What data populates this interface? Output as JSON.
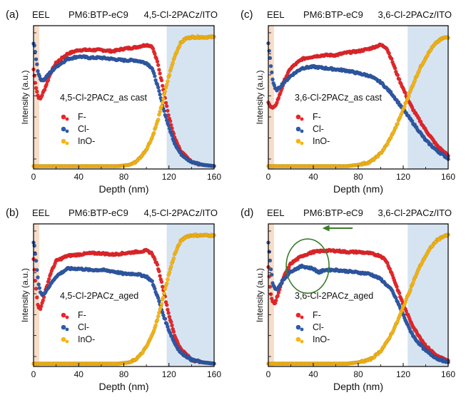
{
  "chart_data": [
    {
      "panel": "(a)",
      "type": "scatter",
      "header": {
        "left": "EEL",
        "middle": "PM6:BTP-eC9",
        "right": "4,5-Cl-2PACz/ITO"
      },
      "annotation": "4,5-Cl-2PACz_as cast",
      "xlabel": "Depth (nm)",
      "ylabel": "Intensity (a.u.)",
      "xlim": [
        0,
        160
      ],
      "ylim": [
        0,
        1
      ],
      "x_ticks": [
        "0",
        "40",
        "80",
        "120",
        "160"
      ],
      "shaded_regions": [
        {
          "name": "EEL",
          "x": [
            0,
            5
          ],
          "color": "#f8dcc8"
        },
        {
          "name": "ITO",
          "x": [
            118,
            160
          ],
          "color": "#d6e4f2"
        }
      ],
      "legend": [
        "F-",
        "Cl-",
        "InO-"
      ],
      "series": [
        {
          "name": "F-",
          "color": "#e8262a",
          "x": [
            0,
            2,
            4,
            6,
            10,
            15,
            20,
            30,
            40,
            50,
            60,
            70,
            80,
            90,
            100,
            105,
            110,
            115,
            120,
            125,
            130,
            140,
            150,
            160
          ],
          "y": [
            0.75,
            0.62,
            0.54,
            0.52,
            0.6,
            0.72,
            0.8,
            0.87,
            0.9,
            0.9,
            0.9,
            0.89,
            0.91,
            0.92,
            0.94,
            0.93,
            0.8,
            0.6,
            0.38,
            0.22,
            0.12,
            0.03,
            0.01,
            0.0
          ]
        },
        {
          "name": "Cl-",
          "color": "#2f5aa8",
          "x": [
            0,
            1,
            2,
            4,
            6,
            8,
            12,
            20,
            30,
            40,
            50,
            60,
            70,
            80,
            90,
            100,
            105,
            110,
            115,
            120,
            125,
            130,
            140,
            150,
            160
          ],
          "y": [
            0.95,
            0.92,
            0.85,
            0.73,
            0.68,
            0.66,
            0.7,
            0.77,
            0.83,
            0.85,
            0.84,
            0.84,
            0.83,
            0.82,
            0.82,
            0.8,
            0.76,
            0.62,
            0.45,
            0.3,
            0.18,
            0.1,
            0.03,
            0.01,
            0.0
          ]
        },
        {
          "name": "InO-",
          "color": "#f5b515",
          "x": [
            0,
            60,
            75,
            85,
            90,
            95,
            100,
            105,
            110,
            115,
            120,
            125,
            130,
            135,
            140,
            150,
            160
          ],
          "y": [
            0.0,
            0.0,
            0.0,
            0.01,
            0.03,
            0.07,
            0.13,
            0.22,
            0.35,
            0.52,
            0.7,
            0.85,
            0.95,
            0.99,
            1.0,
            1.0,
            1.0
          ]
        }
      ]
    },
    {
      "panel": "(c)",
      "type": "scatter",
      "header": {
        "left": "EEL",
        "middle": "PM6:BTP-eC9",
        "right": "3,6-Cl-2PACz/ITO"
      },
      "annotation": "3,6-Cl-2PACz_as cast",
      "xlabel": "Depth (nm)",
      "ylabel": "Intensity (a.u.)",
      "xlim": [
        0,
        160
      ],
      "ylim": [
        0,
        1
      ],
      "x_ticks": [
        "0",
        "40",
        "80",
        "120",
        "160"
      ],
      "shaded_regions": [
        {
          "name": "EEL",
          "x": [
            0,
            5
          ],
          "color": "#f8dcc8"
        },
        {
          "name": "ITO",
          "x": [
            124,
            160
          ],
          "color": "#d6e4f2"
        }
      ],
      "legend": [
        "F-",
        "Cl-",
        "InO-"
      ],
      "series": [
        {
          "name": "F-",
          "color": "#e8262a",
          "x": [
            0,
            2,
            4,
            6,
            10,
            15,
            20,
            30,
            40,
            50,
            60,
            70,
            80,
            90,
            100,
            105,
            110,
            115,
            120,
            125,
            130,
            140,
            150,
            160
          ],
          "y": [
            0.5,
            0.46,
            0.45,
            0.46,
            0.55,
            0.68,
            0.76,
            0.83,
            0.85,
            0.86,
            0.86,
            0.88,
            0.89,
            0.91,
            0.94,
            0.92,
            0.82,
            0.7,
            0.6,
            0.5,
            0.42,
            0.28,
            0.16,
            0.08
          ]
        },
        {
          "name": "Cl-",
          "color": "#2f5aa8",
          "x": [
            0,
            1,
            2,
            4,
            6,
            8,
            12,
            20,
            30,
            40,
            50,
            60,
            70,
            80,
            90,
            100,
            110,
            120,
            130,
            140,
            150,
            160
          ],
          "y": [
            0.95,
            0.88,
            0.8,
            0.66,
            0.6,
            0.59,
            0.63,
            0.7,
            0.76,
            0.77,
            0.76,
            0.75,
            0.74,
            0.72,
            0.7,
            0.65,
            0.56,
            0.44,
            0.32,
            0.2,
            0.12,
            0.06
          ]
        },
        {
          "name": "InO-",
          "color": "#f5b515",
          "x": [
            0,
            70,
            80,
            90,
            95,
            100,
            105,
            110,
            115,
            120,
            125,
            130,
            135,
            140,
            145,
            150,
            155,
            160
          ],
          "y": [
            0.0,
            0.0,
            0.01,
            0.03,
            0.06,
            0.1,
            0.16,
            0.24,
            0.33,
            0.44,
            0.55,
            0.66,
            0.76,
            0.84,
            0.91,
            0.96,
            0.99,
            1.0
          ]
        }
      ]
    },
    {
      "panel": "(b)",
      "type": "scatter",
      "header": {
        "left": "EEL",
        "middle": "PM6:BTP-eC9",
        "right": "4,5-Cl-2PACz/ITO"
      },
      "annotation": "4,5-Cl-2PACz_aged",
      "xlabel": "Depth (nm)",
      "ylabel": "Intensity (a.u.)",
      "xlim": [
        0,
        160
      ],
      "ylim": [
        0,
        1
      ],
      "x_ticks": [
        "0",
        "40",
        "80",
        "120",
        "160"
      ],
      "shaded_regions": [
        {
          "name": "EEL",
          "x": [
            0,
            5
          ],
          "color": "#f8dcc8"
        },
        {
          "name": "ITO",
          "x": [
            118,
            160
          ],
          "color": "#d6e4f2"
        }
      ],
      "legend": [
        "F-",
        "Cl-",
        "InO-"
      ],
      "series": [
        {
          "name": "F-",
          "color": "#e8262a",
          "x": [
            0,
            2,
            4,
            6,
            10,
            15,
            20,
            30,
            40,
            50,
            60,
            70,
            80,
            90,
            100,
            105,
            110,
            115,
            120,
            125,
            130,
            140,
            150,
            160
          ],
          "y": [
            0.82,
            0.6,
            0.45,
            0.42,
            0.55,
            0.7,
            0.8,
            0.84,
            0.85,
            0.86,
            0.86,
            0.85,
            0.86,
            0.87,
            0.88,
            0.86,
            0.76,
            0.58,
            0.38,
            0.22,
            0.12,
            0.03,
            0.01,
            0.0
          ]
        },
        {
          "name": "Cl-",
          "color": "#2f5aa8",
          "x": [
            0,
            1,
            2,
            4,
            6,
            8,
            12,
            20,
            30,
            40,
            50,
            60,
            70,
            80,
            90,
            100,
            105,
            110,
            115,
            120,
            125,
            130,
            140,
            150,
            160
          ],
          "y": [
            0.95,
            0.9,
            0.82,
            0.65,
            0.56,
            0.53,
            0.58,
            0.68,
            0.74,
            0.74,
            0.73,
            0.73,
            0.72,
            0.7,
            0.7,
            0.68,
            0.64,
            0.52,
            0.38,
            0.26,
            0.16,
            0.09,
            0.03,
            0.01,
            0.0
          ]
        },
        {
          "name": "InO-",
          "color": "#f5b515",
          "x": [
            0,
            60,
            75,
            85,
            90,
            95,
            100,
            105,
            110,
            115,
            120,
            125,
            130,
            135,
            140,
            150,
            160
          ],
          "y": [
            0.0,
            0.0,
            0.0,
            0.01,
            0.03,
            0.07,
            0.13,
            0.22,
            0.35,
            0.52,
            0.7,
            0.85,
            0.95,
            0.99,
            1.0,
            1.0,
            1.0
          ]
        }
      ]
    },
    {
      "panel": "(d)",
      "type": "scatter",
      "header": {
        "left": "EEL",
        "middle": "PM6:BTP-eC9",
        "right": "3,6-Cl-2PACz/ITO"
      },
      "annotation": "3,6-Cl-2PACz_aged",
      "xlabel": "Depth (nm)",
      "ylabel": "Intensity (a.u.)",
      "xlim": [
        0,
        160
      ],
      "ylim": [
        0,
        1
      ],
      "x_ticks": [
        "0",
        "40",
        "80",
        "120",
        "160"
      ],
      "shaded_regions": [
        {
          "name": "EEL",
          "x": [
            0,
            5
          ],
          "color": "#f8dcc8"
        },
        {
          "name": "ITO",
          "x": [
            124,
            160
          ],
          "color": "#d6e4f2"
        }
      ],
      "legend": [
        "F-",
        "Cl-",
        "InO-"
      ],
      "highlight": {
        "ellipse_center": [
          35,
          0.76
        ],
        "arrow_from": 75,
        "arrow_to": 48,
        "color": "#3a7d2a"
      },
      "series": [
        {
          "name": "F-",
          "color": "#e8262a",
          "x": [
            0,
            2,
            4,
            6,
            10,
            15,
            20,
            30,
            40,
            50,
            60,
            70,
            80,
            90,
            100,
            105,
            110,
            115,
            120,
            125,
            130,
            140,
            150,
            160
          ],
          "y": [
            0.75,
            0.55,
            0.48,
            0.47,
            0.58,
            0.7,
            0.78,
            0.84,
            0.87,
            0.88,
            0.88,
            0.87,
            0.87,
            0.86,
            0.84,
            0.8,
            0.7,
            0.58,
            0.46,
            0.36,
            0.27,
            0.14,
            0.06,
            0.02
          ]
        },
        {
          "name": "Cl-",
          "color": "#2f5aa8",
          "x": [
            0,
            1,
            2,
            4,
            6,
            8,
            12,
            20,
            30,
            40,
            45,
            50,
            60,
            70,
            80,
            90,
            100,
            110,
            115,
            120,
            125,
            130,
            140,
            150,
            160
          ],
          "y": [
            0.95,
            0.85,
            0.76,
            0.62,
            0.58,
            0.58,
            0.64,
            0.72,
            0.76,
            0.74,
            0.71,
            0.73,
            0.73,
            0.72,
            0.71,
            0.7,
            0.66,
            0.57,
            0.48,
            0.38,
            0.28,
            0.2,
            0.1,
            0.04,
            0.01
          ]
        },
        {
          "name": "InO-",
          "color": "#f5b515",
          "x": [
            0,
            70,
            80,
            90,
            95,
            100,
            105,
            110,
            115,
            120,
            125,
            130,
            135,
            140,
            145,
            150,
            155,
            160
          ],
          "y": [
            0.0,
            0.0,
            0.01,
            0.03,
            0.06,
            0.1,
            0.16,
            0.24,
            0.33,
            0.44,
            0.55,
            0.66,
            0.76,
            0.84,
            0.91,
            0.96,
            0.99,
            1.0
          ]
        }
      ]
    }
  ]
}
